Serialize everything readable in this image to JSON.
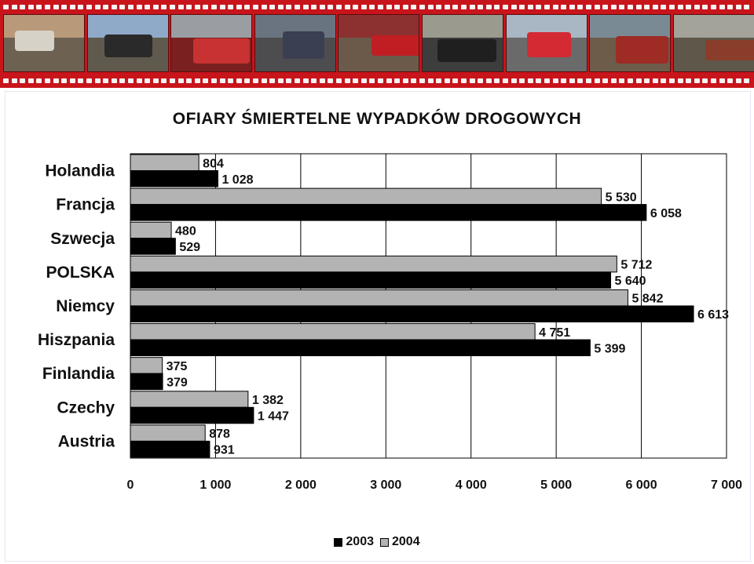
{
  "banner": {
    "frames": [
      {
        "name": "crash-photo-1",
        "sky": "#b89a7a",
        "ground": "#6d6152",
        "wreck": "#d7d2c7"
      },
      {
        "name": "crash-photo-2",
        "sky": "#8fa9c9",
        "ground": "#5f5a4d",
        "wreck": "#2a2a2a"
      },
      {
        "name": "crash-photo-3",
        "sky": "#9a9ea3",
        "ground": "#7a2020",
        "wreck": "#c93232"
      },
      {
        "name": "crash-photo-4",
        "sky": "#6a7480",
        "ground": "#4d4d50",
        "wreck": "#3a3f52"
      },
      {
        "name": "crash-photo-5",
        "sky": "#8d3030",
        "ground": "#6b5a4a",
        "wreck": "#c11e24"
      },
      {
        "name": "crash-photo-6",
        "sky": "#9a9a8e",
        "ground": "#3d3d3d",
        "wreck": "#1f1f1f"
      },
      {
        "name": "crash-photo-7",
        "sky": "#a9b7c4",
        "ground": "#6a6a6a",
        "wreck": "#d42a33"
      },
      {
        "name": "crash-photo-8",
        "sky": "#7a8a95",
        "ground": "#6d5c4a",
        "wreck": "#9e2b24"
      },
      {
        "name": "crash-photo-9",
        "sky": "#a3a39a",
        "ground": "#5e574a",
        "wreck": "#8a3d2a"
      }
    ]
  },
  "colors": {
    "series_2003": "#000000",
    "series_2004": "#b3b3b3",
    "banner": "#c8141b"
  },
  "chart_data": {
    "type": "bar",
    "orientation": "horizontal",
    "title": "OFIARY  ŚMIERTELNE  WYPADKÓW  DROGOWYCH",
    "categories": [
      "Holandia",
      "Francja",
      "Szwecja",
      "POLSKA",
      "Niemcy",
      "Hiszpania",
      "Finlandia",
      "Czechy",
      "Austria"
    ],
    "series": [
      {
        "name": "2004",
        "values": [
          804,
          5530,
          480,
          5712,
          5842,
          4751,
          375,
          1382,
          878
        ]
      },
      {
        "name": "2003",
        "values": [
          1028,
          6058,
          529,
          5640,
          6613,
          5399,
          379,
          1447,
          931
        ]
      }
    ],
    "value_labels": {
      "2004": [
        "804",
        "5 530",
        "480",
        "5 712",
        "5 842",
        "4 751",
        "375",
        "1 382",
        "878"
      ],
      "2003": [
        "1 028",
        "6 058",
        "529",
        "5 640",
        "6 613",
        "5 399",
        "379",
        "1 447",
        "931"
      ]
    },
    "xlim": [
      0,
      7000
    ],
    "x_ticks": [
      0,
      1000,
      2000,
      3000,
      4000,
      5000,
      6000,
      7000
    ],
    "x_tick_labels": [
      "0",
      "1 000",
      "2 000",
      "3 000",
      "4 000",
      "5 000",
      "6 000",
      "7 000"
    ],
    "legend": [
      "2003",
      "2004"
    ],
    "legend_position": "bottom",
    "grid": true
  }
}
